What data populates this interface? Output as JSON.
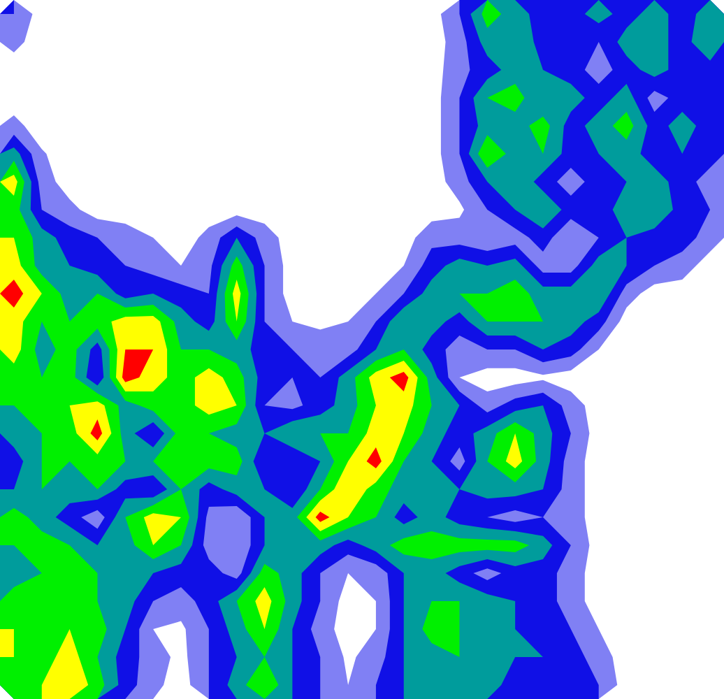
{
  "chart_data": {
    "type": "contour",
    "tick_labels": false,
    "levels": [
      0.5,
      1.5,
      2.5,
      3.5,
      4.5,
      5.5
    ],
    "colors": [
      "#8080f4",
      "#1010e6",
      "#009c9c",
      "#00f000",
      "#ffff00",
      "#ff0000"
    ],
    "cells": [
      [
        1.5,
        0,
        0,
        0,
        0,
        0,
        0,
        0,
        0,
        0,
        0,
        0,
        0,
        0,
        0,
        0,
        1.5,
        4,
        3,
        2,
        2,
        3,
        2,
        3,
        2,
        3
      ],
      [
        0.8,
        0,
        0,
        0,
        0,
        0,
        0,
        0,
        0,
        0,
        0,
        0,
        0,
        0,
        0,
        0,
        1,
        3,
        3.5,
        2,
        2,
        1.5,
        3,
        3,
        2,
        3.5
      ],
      [
        0,
        0,
        0,
        0,
        0,
        0,
        0,
        0,
        0,
        0,
        0,
        0,
        0,
        0,
        0,
        0,
        1.2,
        2,
        3,
        2.5,
        2,
        1,
        2,
        3,
        2,
        2
      ],
      [
        0,
        0,
        0,
        0,
        0,
        0,
        0,
        0,
        0,
        0,
        0,
        0,
        0,
        0,
        0,
        0,
        1.5,
        3.5,
        4,
        2.5,
        3,
        2,
        3,
        1,
        2,
        1.5
      ],
      [
        0.8,
        0,
        0,
        0,
        0,
        0,
        0,
        0,
        0,
        0,
        0,
        0,
        0,
        0,
        0,
        0,
        1.5,
        3,
        3,
        4,
        2,
        3,
        4,
        2,
        3,
        2
      ],
      [
        3,
        0.6,
        0,
        0,
        0,
        0,
        0,
        0,
        0,
        0,
        0,
        0,
        0,
        0,
        0,
        0,
        1.5,
        4.5,
        3,
        3.5,
        2,
        2.5,
        3,
        2,
        2.5,
        2
      ],
      [
        5,
        1,
        0,
        0,
        0,
        0,
        0,
        0,
        0,
        0,
        0,
        0,
        0,
        0,
        0,
        0,
        1,
        2.5,
        3.5,
        2,
        1,
        2,
        2.5,
        3,
        2,
        1
      ],
      [
        4,
        1.5,
        0.8,
        0,
        0,
        0,
        0,
        0,
        0,
        0,
        0,
        0,
        0,
        0,
        0,
        0,
        0.3,
        1.5,
        2.5,
        3.5,
        2,
        2,
        3,
        3.5,
        2,
        1.5
      ],
      [
        4.5,
        3,
        2,
        1.5,
        1,
        0.5,
        0,
        0.8,
        2.5,
        1,
        0,
        0,
        0,
        0,
        0,
        1.2,
        1,
        0.6,
        1,
        2,
        0.5,
        1.5,
        2.5,
        2,
        2,
        1
      ],
      [
        5,
        3,
        2.5,
        2,
        1.5,
        1,
        0.5,
        1.2,
        4,
        1.5,
        0,
        0,
        0,
        0,
        0.5,
        2,
        3,
        2.5,
        3,
        1,
        1,
        3,
        2.5,
        1.5,
        1,
        0
      ],
      [
        6,
        4.5,
        3,
        3.5,
        2,
        2.5,
        2,
        1.5,
        5,
        1.5,
        0,
        0,
        0,
        0.5,
        1.5,
        3,
        3.5,
        3.5,
        4,
        3,
        3,
        3.5,
        1,
        0,
        0,
        0
      ],
      [
        5,
        3.5,
        3.5,
        4,
        5,
        5,
        3,
        2,
        4.5,
        1.5,
        0.5,
        0.3,
        0.5,
        1.5,
        3.5,
        3,
        2,
        3.5,
        3.5,
        3.5,
        3,
        2,
        0,
        0,
        0,
        0
      ],
      [
        5,
        3,
        4,
        2,
        5.5,
        5.5,
        3.5,
        3.5,
        3,
        2,
        1.5,
        1,
        1,
        2.5,
        3.5,
        2,
        1,
        1.5,
        1.5,
        2.5,
        2,
        0.5,
        0,
        0,
        0,
        0
      ],
      [
        4,
        3.5,
        4,
        1.5,
        6,
        5,
        4,
        5,
        4,
        2,
        1.5,
        1.5,
        3,
        5,
        6,
        3,
        0.5,
        0,
        0,
        0.3,
        0,
        0,
        0,
        0,
        0,
        0
      ],
      [
        3.5,
        3.5,
        4.5,
        5,
        3,
        4,
        4,
        5,
        4.5,
        1.5,
        1.2,
        2,
        3,
        4.5,
        5,
        3.5,
        2.5,
        1,
        2,
        2.5,
        1,
        0,
        0,
        0,
        0,
        0
      ],
      [
        3,
        3.5,
        4,
        6,
        3,
        1.5,
        4,
        3.5,
        3,
        2.5,
        3.5,
        3.5,
        3.5,
        5,
        4.5,
        3,
        2,
        3,
        4.5,
        3,
        1.5,
        0,
        0,
        0,
        0,
        0
      ],
      [
        2,
        3.5,
        3.5,
        4,
        3.5,
        3.5,
        4.5,
        4,
        4,
        1.5,
        1.5,
        2.5,
        4.5,
        6,
        3.5,
        2.5,
        1,
        3.5,
        5,
        3,
        1,
        0,
        0,
        0,
        0,
        0
      ],
      [
        2.5,
        3.5,
        3,
        3.5,
        2,
        1.5,
        3.5,
        2,
        3,
        2.5,
        1.5,
        3.5,
        5.5,
        4,
        3,
        2.5,
        2.5,
        3,
        3,
        2.5,
        1,
        0,
        0,
        0,
        0,
        0
      ],
      [
        4,
        3,
        2,
        0.8,
        3.5,
        5,
        4.5,
        1.2,
        0.5,
        2.5,
        3,
        6,
        4.5,
        3.5,
        2,
        3,
        2,
        1.5,
        1,
        1.5,
        1,
        0,
        0,
        0,
        0,
        0
      ],
      [
        3.5,
        4,
        3.5,
        2.5,
        3,
        4.5,
        3.5,
        1,
        0.5,
        2.5,
        3.5,
        3,
        2,
        3,
        4,
        4,
        4,
        4,
        4,
        3,
        1.5,
        0,
        0,
        0,
        0,
        0
      ],
      [
        3,
        3.5,
        4,
        3.5,
        3,
        2.5,
        2,
        2,
        1,
        4,
        3,
        1.5,
        0.5,
        0.8,
        2.5,
        3,
        2,
        1,
        2,
        2,
        1,
        0,
        0,
        0,
        0,
        0
      ],
      [
        4,
        3.5,
        4.5,
        3.5,
        3,
        1.5,
        1,
        2,
        3.5,
        5,
        3,
        1.5,
        0,
        0.5,
        2.5,
        3.5,
        3.5,
        3,
        2.5,
        2,
        1,
        0,
        0,
        0,
        0,
        0
      ],
      [
        4.5,
        4,
        4.5,
        4,
        2.5,
        0.5,
        0.3,
        1.5,
        3,
        4.5,
        2.5,
        1,
        0,
        0.5,
        2.5,
        4,
        3.5,
        3,
        2.5,
        2,
        1.5,
        0.5,
        0,
        0,
        0,
        0
      ],
      [
        4.5,
        4,
        5,
        3.5,
        2,
        1,
        0.2,
        1.5,
        2.5,
        3.5,
        2.5,
        1.5,
        0.3,
        1,
        2.5,
        3,
        3.5,
        3,
        2.5,
        2.5,
        2,
        1,
        0,
        0,
        0,
        0
      ],
      [
        4,
        4.5,
        5.5,
        4,
        2,
        0.8,
        0,
        1.5,
        3,
        4.5,
        2.5,
        1.5,
        0.5,
        1.5,
        2.5,
        2.5,
        2.5,
        3,
        2,
        2,
        2.5,
        1.5,
        0,
        0,
        0,
        0
      ]
    ]
  }
}
